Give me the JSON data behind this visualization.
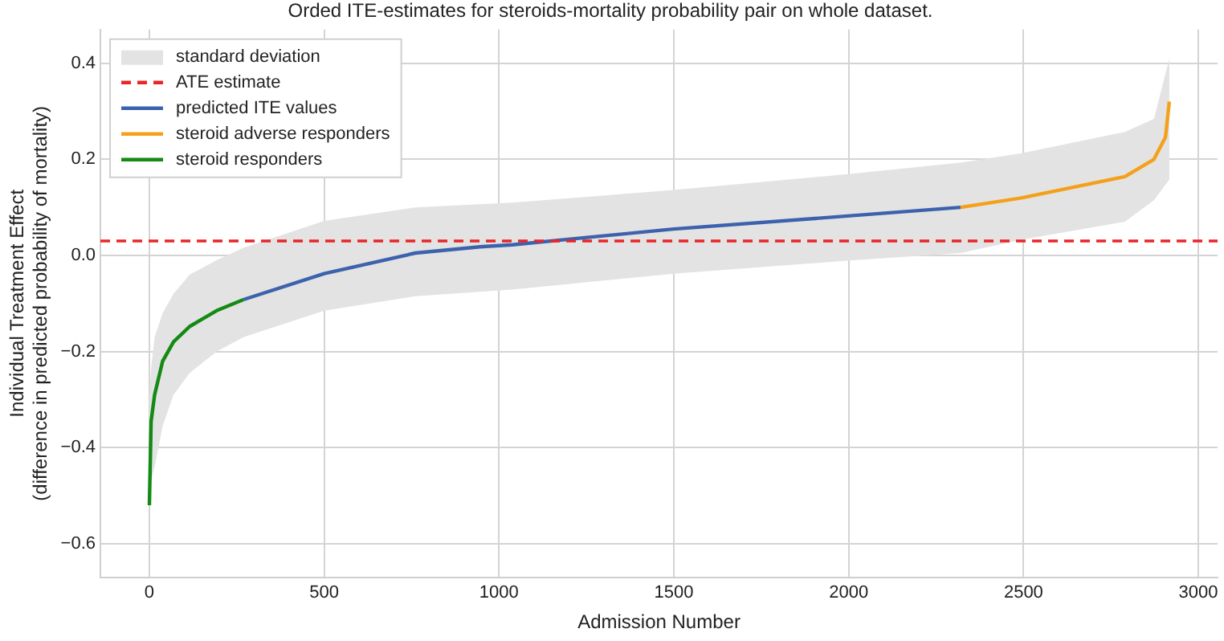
{
  "chart_data": {
    "type": "line",
    "title": "Orded ITE-estimates for steroids-mortality probability pair on whole dataset.",
    "xlabel": "Admission Number",
    "ylabel": "Individual Treatment Effect\n(difference in predicted probability of mortality)",
    "xlim": [
      -140,
      3055
    ],
    "xticks": [
      0,
      500,
      1000,
      1500,
      2000,
      2500,
      3000
    ],
    "ylim": [
      -0.67,
      0.47
    ],
    "yticks": [
      {
        "value": -0.6,
        "label": "−0.6"
      },
      {
        "value": -0.4,
        "label": "−0.4"
      },
      {
        "value": -0.2,
        "label": "−0.2"
      },
      {
        "value": 0,
        "label": "0.0"
      },
      0.2,
      0.4
    ],
    "grid": true,
    "legend": "top left",
    "line_style": "solid",
    "marker": "none",
    "ref_lines": [
      {
        "axis": "y",
        "value": 0.03,
        "label": "ATE estimate",
        "color": "#e8262a",
        "line_style": "dashed"
      }
    ],
    "series": [
      {
        "name": "standard deviation",
        "color": "#e3e3e3",
        "x": [
          0,
          5,
          15,
          38,
          69,
          115,
          192,
          269,
          500,
          761,
          1038,
          1499,
          1997,
          2320,
          2497,
          2790,
          2873,
          2917
        ],
        "values": [
          null,
          null,
          null,
          null,
          null,
          null,
          null,
          null,
          null,
          null,
          null,
          null,
          null,
          null,
          null,
          null,
          null,
          null
        ],
        "upper": [
          -0.3,
          -0.235,
          -0.17,
          -0.12,
          -0.08,
          -0.04,
          -0.01,
          0.016,
          0.072,
          0.1,
          0.11,
          0.136,
          0.169,
          0.193,
          0.213,
          0.257,
          0.284,
          0.41
        ],
        "lower": [
          -0.52,
          -0.47,
          -0.44,
          -0.355,
          -0.29,
          -0.245,
          -0.2,
          -0.17,
          -0.115,
          -0.085,
          -0.071,
          -0.038,
          -0.011,
          0.005,
          0.033,
          0.07,
          0.115,
          0.158
        ]
      },
      {
        "name": "predicted ITE values",
        "color": "#3d62ad",
        "x": [
          269,
          500,
          761,
          946,
          1038,
          1499,
          1997,
          2320
        ],
        "values": [
          -0.092,
          -0.038,
          0.005,
          0.018,
          0.022,
          0.055,
          0.082,
          0.1
        ]
      },
      {
        "name": "steroid adverse responders",
        "color": "#f5a01a",
        "x": [
          2320,
          2497,
          2790,
          2873,
          2906,
          2917
        ],
        "values": [
          0.1,
          0.12,
          0.164,
          0.2,
          0.246,
          0.32
        ]
      },
      {
        "name": "steroid responders",
        "color": "#138a13",
        "x": [
          0,
          5,
          15,
          38,
          69,
          115,
          192,
          269
        ],
        "values": [
          -0.52,
          -0.345,
          -0.29,
          -0.22,
          -0.18,
          -0.148,
          -0.115,
          -0.092
        ]
      }
    ]
  }
}
